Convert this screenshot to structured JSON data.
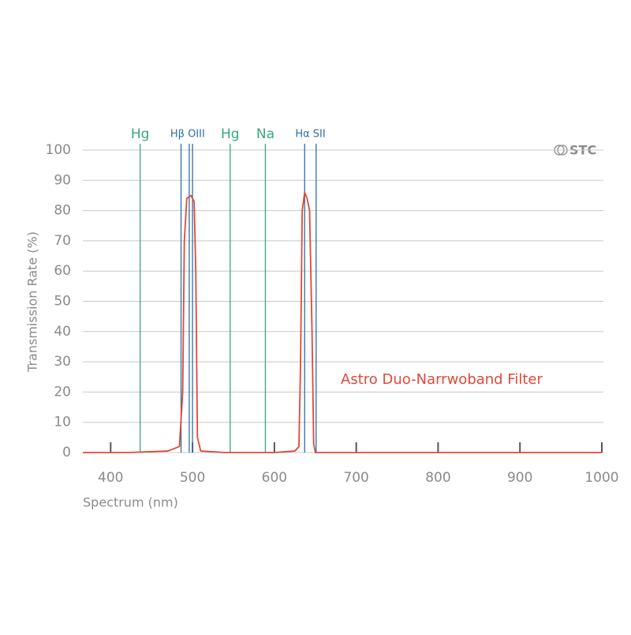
{
  "chart_data": {
    "type": "line",
    "x_label": "Spectrum (nm)",
    "y_label": "Transmission Rate (%)",
    "logo": "STC",
    "xlim": [
      366,
      1000
    ],
    "xticks": [
      400,
      500,
      600,
      700,
      800,
      900,
      1000
    ],
    "ylim": [
      0,
      100
    ],
    "yticks": [
      0,
      10,
      20,
      30,
      40,
      50,
      60,
      70,
      80,
      90,
      100
    ],
    "grid": true,
    "reference_lines": [
      {
        "label": "Hg",
        "color": "#3aa77a",
        "x": [
          436
        ]
      },
      {
        "label": "Hβ OIII",
        "color": "#2e6ea6",
        "x": [
          486,
          496,
          500
        ]
      },
      {
        "label": "Hg",
        "color": "#3aa77a",
        "x": [
          546
        ]
      },
      {
        "label": "Na",
        "color": "#3aa77a",
        "x": [
          589
        ]
      },
      {
        "label": "Hα SII",
        "color": "#2e6ea6",
        "x": [
          637,
          651
        ]
      }
    ],
    "series": [
      {
        "name": "Astro Duo-Narrwoband Filter",
        "color": "#e0483a",
        "x": [
          366,
          420,
          470,
          484,
          488,
          490,
          493,
          498,
          502,
          504,
          506,
          510,
          540,
          600,
          625,
          630,
          632,
          634,
          637,
          640,
          643,
          646,
          648,
          650,
          655,
          700,
          800,
          900,
          1000
        ],
        "values": [
          0,
          0,
          0.5,
          2,
          20,
          70,
          84,
          85,
          83,
          60,
          5,
          0.5,
          0,
          0,
          0.5,
          2,
          30,
          80,
          86,
          84,
          80,
          40,
          3,
          0,
          0,
          0,
          0,
          0,
          0
        ]
      }
    ]
  }
}
